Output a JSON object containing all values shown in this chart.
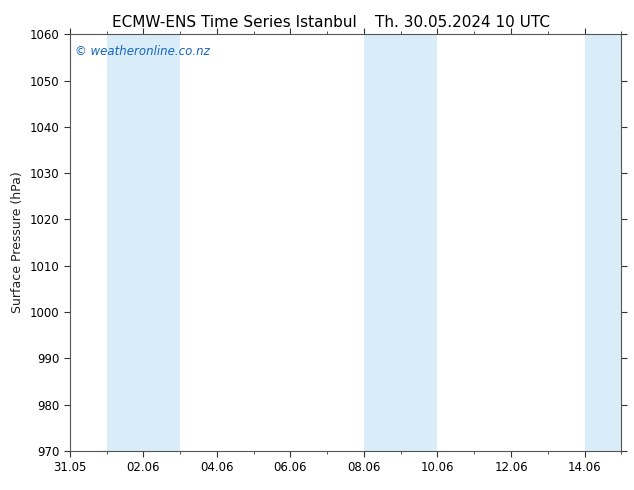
{
  "title_left": "ECMW-ENS Time Series Istanbul",
  "title_right": "Th. 30.05.2024 10 UTC",
  "ylabel": "Surface Pressure (hPa)",
  "ylim": [
    970,
    1060
  ],
  "yticks": [
    970,
    980,
    990,
    1000,
    1010,
    1020,
    1030,
    1040,
    1050,
    1060
  ],
  "total_days": 15,
  "xtick_labels": [
    "31.05",
    "02.06",
    "04.06",
    "06.06",
    "08.06",
    "10.06",
    "12.06",
    "14.06"
  ],
  "xtick_positions_days": [
    0,
    2,
    4,
    6,
    8,
    10,
    12,
    14
  ],
  "shaded_regions": [
    {
      "start_day": 1.0,
      "end_day": 3.0
    },
    {
      "start_day": 8.0,
      "end_day": 10.0
    },
    {
      "start_day": 14.0,
      "end_day": 15.0
    }
  ],
  "shade_color": "#d8edf8",
  "watermark_text": "© weatheronline.co.nz",
  "watermark_color": "#1565c0",
  "background_color": "#ffffff",
  "spine_color": "#555555",
  "tick_color": "#333333",
  "title_fontsize": 11,
  "label_fontsize": 9,
  "tick_fontsize": 8.5
}
